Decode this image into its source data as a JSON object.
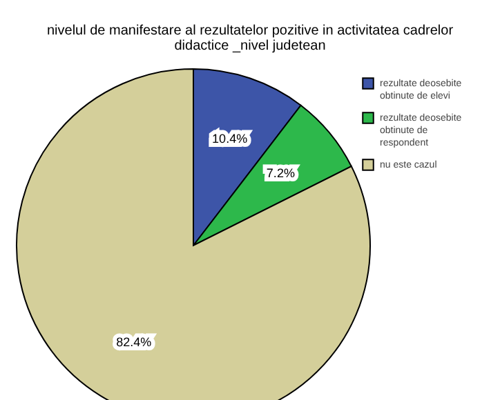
{
  "chart_data": {
    "type": "pie",
    "title": [
      "nivelul de manifestare al rezultatelor pozitive in activitatea cadrelor",
      "didactice _nivel judetean"
    ],
    "categories": [
      "rezultate deosebite obtinute de elevi",
      "rezultate deosebite obtinute de respondent",
      "nu este cazul"
    ],
    "values": [
      10.4,
      7.2,
      82.4
    ],
    "colors": [
      "#3d55a8",
      "#2db84b",
      "#d4cf9a"
    ],
    "value_labels": [
      "10.4%",
      "7.2%",
      "82.4%"
    ],
    "legend": "top right"
  }
}
